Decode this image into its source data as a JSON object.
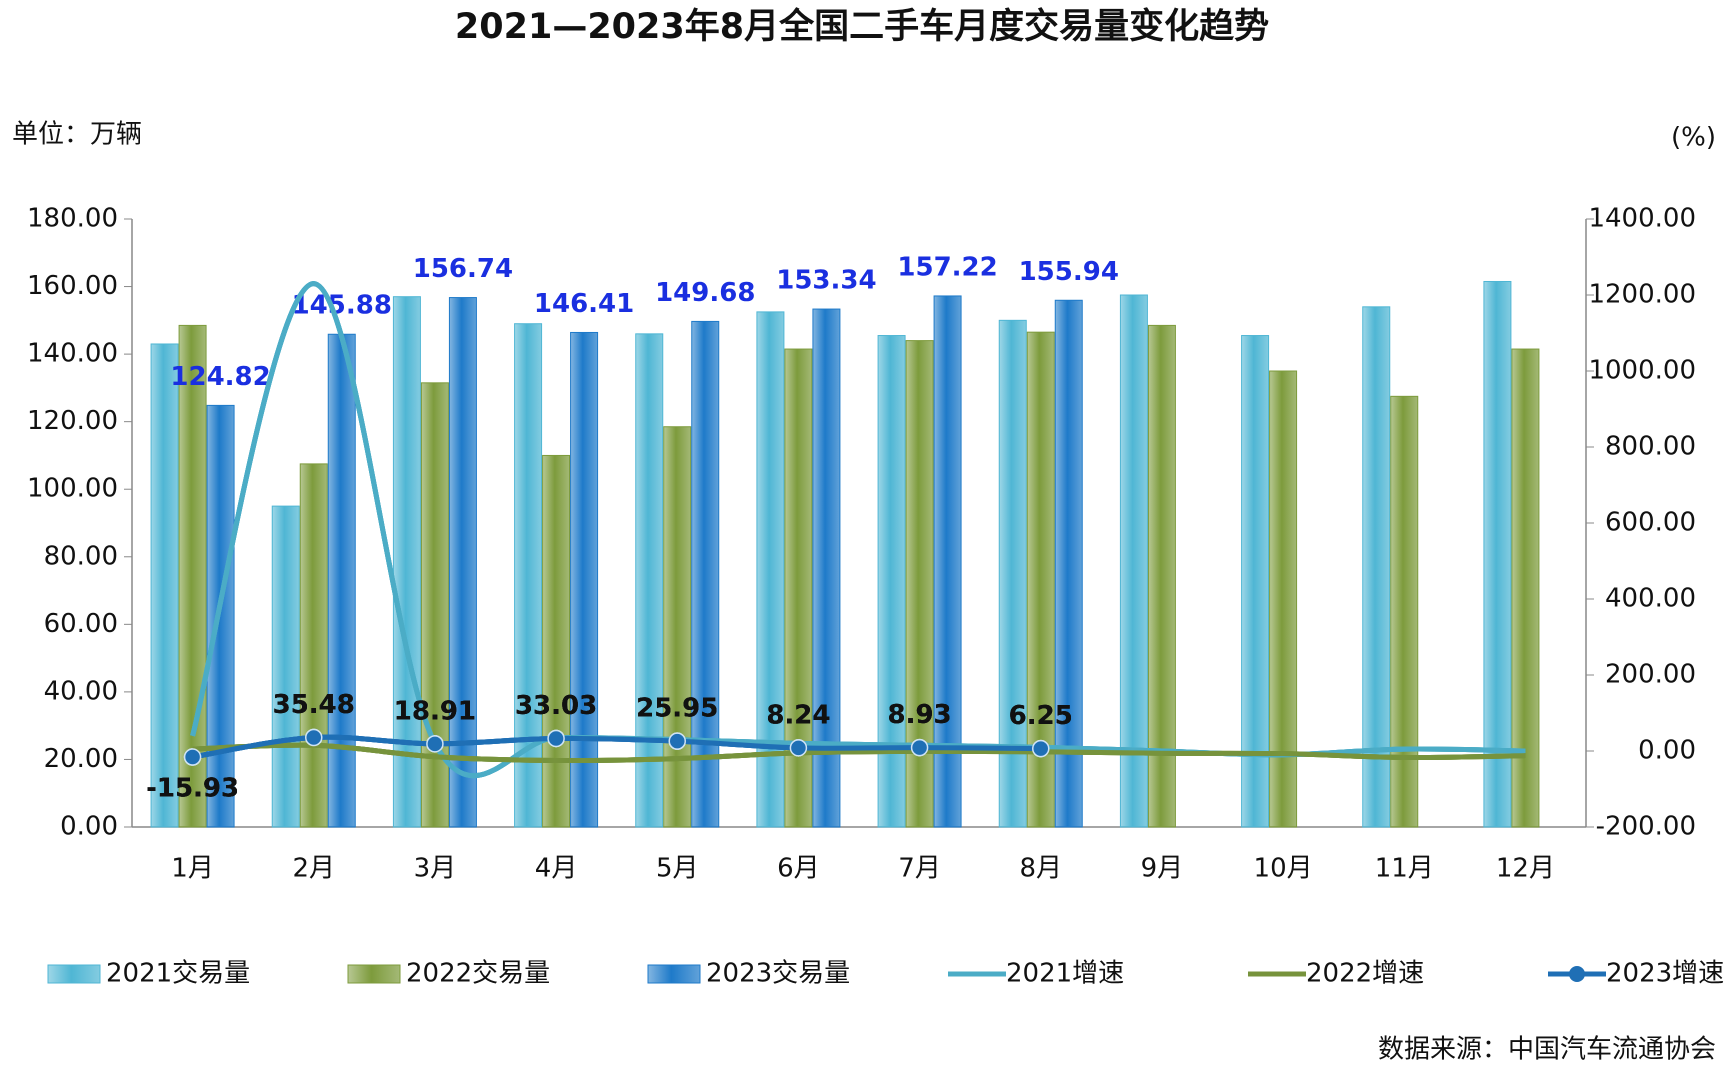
{
  "chart_data": {
    "type": "bar",
    "title": "2021—2023年8月全国二手车月度交易量变化趋势",
    "y_label": "单位：万辆",
    "y2_label": "(%)",
    "source": "数据来源：中国汽车流通协会",
    "categories": [
      "1月",
      "2月",
      "3月",
      "4月",
      "5月",
      "6月",
      "7月",
      "8月",
      "9月",
      "10月",
      "11月",
      "12月"
    ],
    "ylim": [
      0,
      180
    ],
    "yticks": [
      {
        "value": 0,
        "label": "0.00"
      },
      {
        "value": 20,
        "label": "20.00"
      },
      {
        "value": 40,
        "label": "40.00"
      },
      {
        "value": 60,
        "label": "60.00"
      },
      {
        "value": 80,
        "label": "80.00"
      },
      {
        "value": 100,
        "label": "100.00"
      },
      {
        "value": 120,
        "label": "120.00"
      },
      {
        "value": 140,
        "label": "140.00"
      },
      {
        "value": 160,
        "label": "160.00"
      },
      {
        "value": 180,
        "label": "180.00"
      }
    ],
    "y2lim": [
      -200,
      1400
    ],
    "y2ticks": [
      {
        "value": -200,
        "label": "-200.00"
      },
      {
        "value": 0,
        "label": "0.00"
      },
      {
        "value": 200,
        "label": "200.00"
      },
      {
        "value": 400,
        "label": "400.00"
      },
      {
        "value": 600,
        "label": "600.00"
      },
      {
        "value": 800,
        "label": "800.00"
      },
      {
        "value": 1000,
        "label": "1000.00"
      },
      {
        "value": 1200,
        "label": "1200.00"
      },
      {
        "value": 1400,
        "label": "1400.00"
      }
    ],
    "legend": "bottom",
    "series": [
      {
        "name": "2021交易量",
        "type": "bar",
        "color": "#4fb6d4",
        "values": [
          143,
          95,
          157,
          149,
          146,
          152.5,
          145.5,
          150,
          157.5,
          145.5,
          154,
          161.5
        ]
      },
      {
        "name": "2022交易量",
        "type": "bar",
        "color": "#7d9b3c",
        "values": [
          148.5,
          107.5,
          131.5,
          110,
          118.5,
          141.5,
          144,
          146.5,
          148.5,
          135,
          127.5,
          141.5
        ]
      },
      {
        "name": "2023交易量",
        "type": "bar",
        "color": "#1e7ac9",
        "label_color": "#1a2fe0",
        "values": [
          124.82,
          145.88,
          156.74,
          146.41,
          149.68,
          153.34,
          157.22,
          155.94,
          null,
          null,
          null,
          null
        ]
      },
      {
        "name": "2021增速",
        "type": "line",
        "axis": "y2",
        "color": "#4bacc6",
        "values": [
          40,
          1230,
          20,
          35,
          30,
          20,
          15,
          10,
          0,
          -10,
          5,
          0
        ]
      },
      {
        "name": "2022增速",
        "type": "line",
        "axis": "y2",
        "color": "#77933c",
        "values": [
          5,
          15,
          -15,
          -25,
          -20,
          -5,
          -1,
          -2,
          -6,
          -7,
          -17,
          -12
        ]
      },
      {
        "name": "2023增速",
        "type": "line",
        "axis": "y2",
        "color": "#1f6fb5",
        "marker": true,
        "label_color": "#111111",
        "values": [
          -15.93,
          35.48,
          18.91,
          33.03,
          25.95,
          8.24,
          8.93,
          6.25,
          null,
          null,
          null,
          null
        ]
      }
    ]
  }
}
